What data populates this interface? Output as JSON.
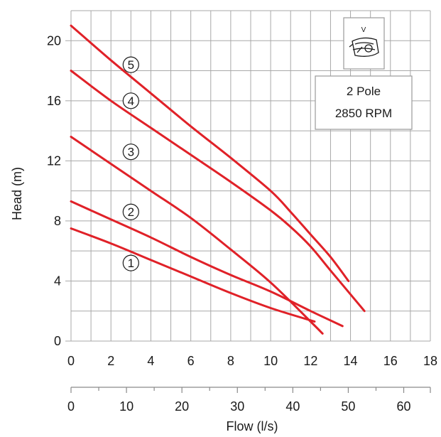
{
  "chart_data": {
    "type": "line",
    "xlabel": "Flow (l/s)",
    "ylabel": "Head (m)",
    "xlim": [
      0,
      18
    ],
    "ylim": [
      0,
      22
    ],
    "x_ticks": [
      0,
      2,
      4,
      6,
      8,
      10,
      12,
      14,
      16,
      18
    ],
    "y_ticks": [
      0,
      4,
      8,
      12,
      16,
      20
    ],
    "secondary_x_axis": {
      "ticks": [
        0,
        10,
        20,
        30,
        40,
        50,
        60
      ],
      "unit_factor": 3.6
    },
    "grid": true,
    "series_color": "#e02128",
    "series": [
      {
        "name": "1",
        "x": [
          0,
          2,
          4,
          6,
          8,
          10,
          12.2
        ],
        "y": [
          7.5,
          6.5,
          5.4,
          4.3,
          3.2,
          2.2,
          1.3
        ]
      },
      {
        "name": "2",
        "x": [
          0,
          2,
          4,
          6,
          8,
          10,
          12,
          13.6
        ],
        "y": [
          9.3,
          8.1,
          6.9,
          5.6,
          4.4,
          3.3,
          2.0,
          1.0
        ]
      },
      {
        "name": "3",
        "x": [
          0,
          2,
          4,
          6,
          8,
          10,
          12,
          12.6
        ],
        "y": [
          13.6,
          11.8,
          10.0,
          8.2,
          6.1,
          3.9,
          1.3,
          0.5
        ]
      },
      {
        "name": "4",
        "x": [
          0,
          2,
          4,
          6,
          8,
          10,
          11,
          12,
          13,
          14.7
        ],
        "y": [
          18.0,
          16.0,
          14.2,
          12.4,
          10.6,
          8.7,
          7.6,
          6.3,
          4.7,
          2.0
        ]
      },
      {
        "name": "5",
        "x": [
          0,
          2,
          4,
          6,
          8,
          10,
          11,
          12,
          13,
          13.9
        ],
        "y": [
          21.0,
          18.7,
          16.5,
          14.3,
          12.2,
          10.0,
          8.6,
          7.1,
          5.6,
          4.0
        ]
      }
    ],
    "curve_labels": [
      {
        "text": "1",
        "x": 3.0,
        "y": 5.2
      },
      {
        "text": "2",
        "x": 3.0,
        "y": 8.6
      },
      {
        "text": "3",
        "x": 3.0,
        "y": 12.6
      },
      {
        "text": "4",
        "x": 3.0,
        "y": 16.0
      },
      {
        "text": "5",
        "x": 3.0,
        "y": 18.4
      }
    ]
  },
  "info_box": {
    "icon_letter": "V",
    "icon_name": "pump-icon",
    "poles": "2 Pole",
    "rpm": "2850 RPM"
  }
}
